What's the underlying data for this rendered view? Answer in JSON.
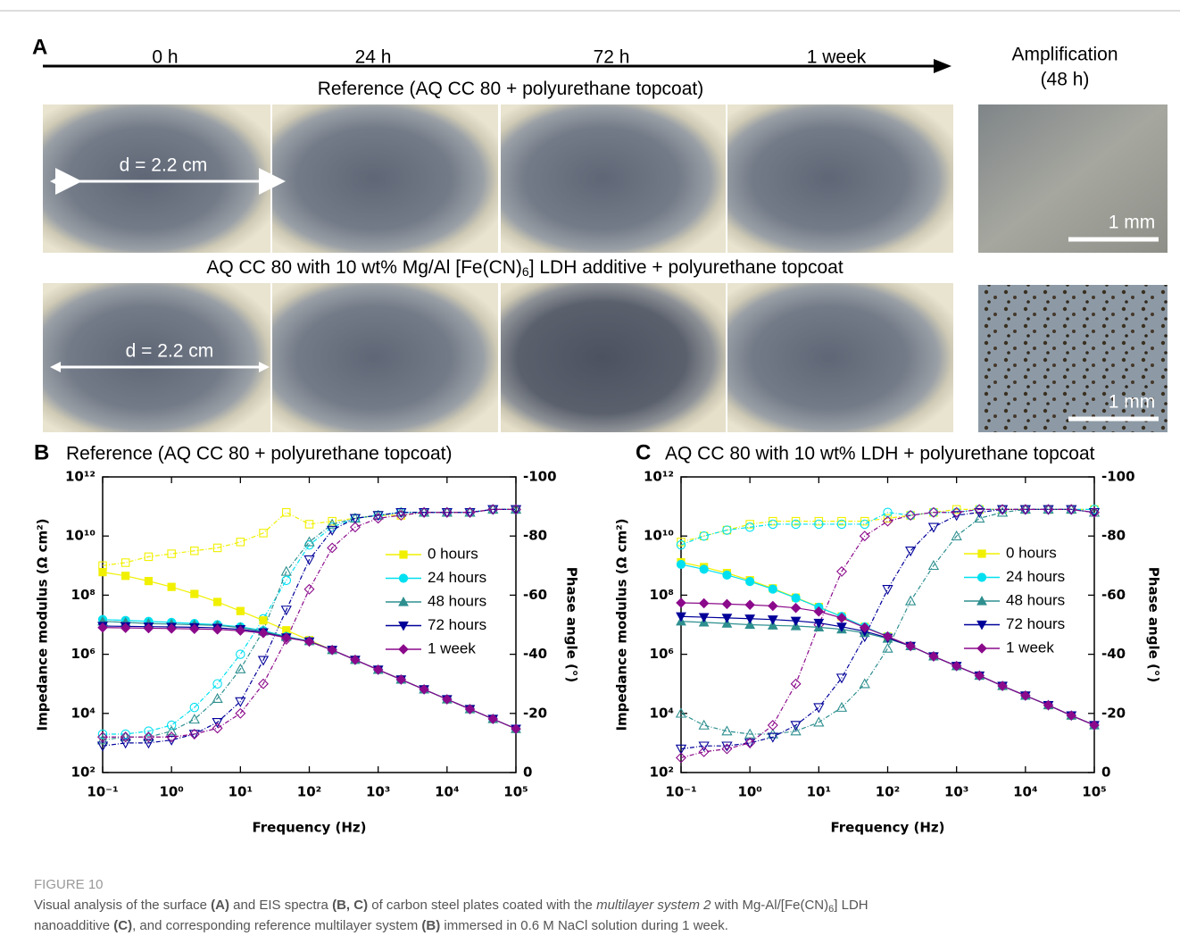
{
  "panel_a": {
    "letter": "A",
    "time_labels": [
      "0 h",
      "24 h",
      "72 h",
      "1 week"
    ],
    "amplification": [
      "Amplification",
      "(48 h)"
    ],
    "row_titles": [
      [
        "Reference (AQ CC 80 + polyurethane topcoat)"
      ],
      [
        "AQ CC 80 with 10 wt% Mg/Al [Fe(CN)",
        "6",
        "] LDH additive  + polyurethane topcoat"
      ]
    ],
    "diameter_labels": [
      "d = 2.2 cm",
      "d = 2.2 cm"
    ],
    "scale_labels": [
      "1 mm",
      "1 mm"
    ]
  },
  "chart_data": [
    {
      "type": "line",
      "panel": "B",
      "title": "Reference (AQ CC 80 + polyurethane topcoat)",
      "x_label": "Frequency (Hz)",
      "y_label": "Impedance modulus (Ω cm²)",
      "y2_label": "Phase angle (°)",
      "x_scale": "log",
      "y_scale": "log",
      "legend": "right",
      "x": [
        0.1,
        0.215,
        0.464,
        1,
        2.15,
        4.64,
        10,
        21.5,
        46.4,
        100,
        215,
        464,
        1000,
        2150,
        4640,
        10000,
        21500,
        46400,
        100000
      ],
      "xlim": [
        0.1,
        100000
      ],
      "xticks": [
        {
          "value": 0.1,
          "label": "10⁻¹"
        },
        {
          "value": 1,
          "label": "10⁰"
        },
        {
          "value": 10,
          "label": "10¹"
        },
        {
          "value": 100,
          "label": "10²"
        },
        {
          "value": 1000,
          "label": "10³"
        },
        {
          "value": 10000,
          "label": "10⁴"
        },
        {
          "value": 100000,
          "label": "10⁵"
        }
      ],
      "ylim": [
        100,
        1000000000000.0
      ],
      "yticks": [
        {
          "value": 100,
          "label": "10²"
        },
        {
          "value": 10000,
          "label": "10⁴"
        },
        {
          "value": 1000000.0,
          "label": "10⁶"
        },
        {
          "value": 100000000.0,
          "label": "10⁸"
        },
        {
          "value": 10000000000.0,
          "label": "10¹⁰"
        },
        {
          "value": 1000000000000.0,
          "label": "10¹²"
        }
      ],
      "y2lim": [
        0,
        -100
      ],
      "y2ticks": [
        -100,
        -80,
        -60,
        -40,
        -20,
        0
      ],
      "series": [
        {
          "name": "0 hours",
          "color": "#f0f000",
          "marker": "square",
          "values": [
            600000000.0,
            450000000.0,
            300000000.0,
            190000000.0,
            110000000.0,
            59000000.0,
            29000000.0,
            14000000.0,
            6500000.0,
            3000000.0,
            1400000.0,
            650000.0,
            300000.0,
            140000.0,
            65000.0,
            30000.0,
            14000.0,
            6500.0,
            3000.0
          ]
        },
        {
          "name": "24 hours",
          "color": "#00e0f0",
          "marker": "circle",
          "values": [
            15000000.0,
            14000000.0,
            13000000.0,
            12000000.0,
            11000000.0,
            10000000.0,
            8500000.0,
            6300000.0,
            4000000.0,
            2800000.0,
            1400000.0,
            650000.0,
            300000.0,
            140000.0,
            65000.0,
            30000.0,
            14000.0,
            6500.0,
            3000.0
          ]
        },
        {
          "name": "48 hours",
          "color": "#2f8f8f",
          "marker": "triangle-up",
          "values": [
            13000000.0,
            12000000.0,
            11000000.0,
            10500000.0,
            10000000.0,
            9500000.0,
            8000000.0,
            6000000.0,
            3900000.0,
            2800000.0,
            1400000.0,
            650000.0,
            300000.0,
            140000.0,
            65000.0,
            30000.0,
            14000.0,
            6500.0,
            3000.0
          ]
        },
        {
          "name": "72 hours",
          "color": "#000099",
          "marker": "triangle-down",
          "values": [
            9000000.0,
            8800000.0,
            8600000.0,
            8400000.0,
            8200000.0,
            7800000.0,
            7000000.0,
            5500000.0,
            3700000.0,
            2700000.0,
            1400000.0,
            650000.0,
            300000.0,
            140000.0,
            65000.0,
            30000.0,
            14000.0,
            6500.0,
            3000.0
          ]
        },
        {
          "name": "1 week",
          "color": "#8b0a8b",
          "marker": "diamond",
          "values": [
            8000000.0,
            7800000.0,
            7600000.0,
            7400000.0,
            7200000.0,
            6900000.0,
            6300000.0,
            5200000.0,
            3600000.0,
            2700000.0,
            1400000.0,
            650000.0,
            300000.0,
            140000.0,
            65000.0,
            30000.0,
            14000.0,
            6500.0,
            3000.0
          ]
        },
        {
          "color": "#f0f000",
          "marker": "square",
          "open": true,
          "dashed": true,
          "axis": "y2",
          "values": [
            -70,
            -71,
            -73,
            -74,
            -75,
            -76,
            -78,
            -81,
            -88,
            -84,
            -85,
            -86,
            -87,
            -87,
            -88,
            -88,
            -88,
            -89,
            -89
          ]
        },
        {
          "color": "#00e0f0",
          "marker": "circle",
          "open": true,
          "dashed": true,
          "axis": "y2",
          "values": [
            -13,
            -13,
            -14,
            -16,
            -22,
            -30,
            -40,
            -52,
            -65,
            -77,
            -83,
            -86,
            -87,
            -88,
            -88,
            -88,
            -88,
            -89,
            -89
          ]
        },
        {
          "color": "#2f8f8f",
          "marker": "triangle-up",
          "open": true,
          "dashed": true,
          "axis": "y2",
          "values": [
            -11,
            -12,
            -12,
            -14,
            -18,
            -25,
            -35,
            -48,
            -68,
            -78,
            -84,
            -86,
            -87,
            -88,
            -88,
            -88,
            -88,
            -89,
            -89
          ]
        },
        {
          "color": "#000099",
          "marker": "triangle-down",
          "open": true,
          "dashed": true,
          "axis": "y2",
          "values": [
            -9,
            -10,
            -10,
            -11,
            -13,
            -17,
            -24,
            -38,
            -55,
            -72,
            -82,
            -86,
            -87,
            -88,
            -88,
            -88,
            -88,
            -89,
            -89
          ]
        },
        {
          "color": "#8b0a8b",
          "marker": "diamond",
          "open": true,
          "dashed": true,
          "axis": "y2",
          "values": [
            -12,
            -12,
            -12,
            -12,
            -13,
            -15,
            -20,
            -30,
            -45,
            -62,
            -76,
            -83,
            -86,
            -87,
            -88,
            -88,
            -88,
            -89,
            -89
          ]
        }
      ]
    },
    {
      "type": "line",
      "panel": "C",
      "title": "AQ CC 80 with 10 wt% LDH + polyurethane topcoat",
      "x_label": "Frequency (Hz)",
      "y_label": "Impedance modulus (Ω cm²)",
      "y2_label": "Phase angle (°)",
      "x_scale": "log",
      "y_scale": "log",
      "legend": "right",
      "x": [
        0.1,
        0.215,
        0.464,
        1,
        2.15,
        4.64,
        10,
        21.5,
        46.4,
        100,
        215,
        464,
        1000,
        2150,
        4640,
        10000,
        21500,
        46400,
        100000
      ],
      "xlim": [
        0.1,
        100000
      ],
      "xticks": [
        {
          "value": 0.1,
          "label": "10⁻¹"
        },
        {
          "value": 1,
          "label": "10⁰"
        },
        {
          "value": 10,
          "label": "10¹"
        },
        {
          "value": 100,
          "label": "10²"
        },
        {
          "value": 1000,
          "label": "10³"
        },
        {
          "value": 10000,
          "label": "10⁴"
        },
        {
          "value": 100000,
          "label": "10⁵"
        }
      ],
      "ylim": [
        100,
        1000000000000.0
      ],
      "yticks": [
        {
          "value": 100,
          "label": "10²"
        },
        {
          "value": 10000,
          "label": "10⁴"
        },
        {
          "value": 1000000.0,
          "label": "10⁶"
        },
        {
          "value": 100000000.0,
          "label": "10⁸"
        },
        {
          "value": 10000000000.0,
          "label": "10¹⁰"
        },
        {
          "value": 1000000000000.0,
          "label": "10¹²"
        }
      ],
      "y2lim": [
        0,
        -100
      ],
      "y2ticks": [
        -100,
        -80,
        -60,
        -40,
        -20,
        0
      ],
      "series": [
        {
          "name": "0 hours",
          "color": "#f0f000",
          "marker": "square",
          "values": [
            1300000000.0,
            890000000.0,
            560000000.0,
            320000000.0,
            170000000.0,
            83000000.0,
            40000000.0,
            19000000.0,
            8500000.0,
            4000000.0,
            1900000.0,
            850000.0,
            400000.0,
            190000.0,
            85000.0,
            40000.0,
            19000.0,
            8500.0,
            4000.0
          ]
        },
        {
          "name": "24 hours",
          "color": "#00e0f0",
          "marker": "circle",
          "values": [
            1100000000.0,
            750000000.0,
            480000000.0,
            290000000.0,
            160000000.0,
            80000000.0,
            39000000.0,
            19000000.0,
            8500000.0,
            4000000.0,
            1900000.0,
            850000.0,
            400000.0,
            190000.0,
            85000.0,
            40000.0,
            19000.0,
            8500.0,
            4000.0
          ]
        },
        {
          "name": "48 hours",
          "color": "#2f8f8f",
          "marker": "triangle-up",
          "values": [
            13000000.0,
            12000000.0,
            11000000.0,
            10000000.0,
            9500000.0,
            9000000.0,
            8200000.0,
            7000000.0,
            5300000.0,
            3400000.0,
            1900000.0,
            850000.0,
            400000.0,
            190000.0,
            85000.0,
            40000.0,
            19000.0,
            8500.0,
            4000.0
          ]
        },
        {
          "name": "72 hours",
          "color": "#000099",
          "marker": "triangle-down",
          "values": [
            19000000.0,
            18000000.0,
            17000000.0,
            16000000.0,
            15000000.0,
            13500000.0,
            11500000.0,
            8500000.0,
            6000000.0,
            3600000.0,
            1900000.0,
            850000.0,
            400000.0,
            190000.0,
            85000.0,
            40000.0,
            19000.0,
            8500.0,
            4000.0
          ]
        },
        {
          "name": "1 week",
          "color": "#8b0a8b",
          "marker": "diamond",
          "values": [
            55000000.0,
            53000000.0,
            50000000.0,
            47000000.0,
            43000000.0,
            37000000.0,
            28000000.0,
            17000000.0,
            8000000.0,
            4000000.0,
            1900000.0,
            850000.0,
            400000.0,
            190000.0,
            85000.0,
            40000.0,
            19000.0,
            8500.0,
            4000.0
          ]
        },
        {
          "color": "#f0f000",
          "marker": "square",
          "open": true,
          "dashed": true,
          "axis": "y2",
          "values": [
            -78,
            -80,
            -82,
            -84,
            -85,
            -85,
            -85,
            -85,
            -85,
            -86,
            -87,
            -88,
            -89,
            -89,
            -89,
            -89,
            -89,
            -89,
            -89
          ]
        },
        {
          "color": "#00e0f0",
          "marker": "circle",
          "open": true,
          "dashed": true,
          "axis": "y2",
          "values": [
            -77,
            -80,
            -82,
            -83,
            -84,
            -84,
            -84,
            -84,
            -84,
            -88,
            -87,
            -88,
            -88,
            -89,
            -89,
            -89,
            -89,
            -89,
            -89
          ]
        },
        {
          "color": "#2f8f8f",
          "marker": "triangle-up",
          "open": true,
          "dashed": true,
          "axis": "y2",
          "values": [
            -20,
            -16,
            -14,
            -13,
            -13,
            -14,
            -17,
            -22,
            -30,
            -42,
            -58,
            -70,
            -80,
            -86,
            -88,
            -89,
            -89,
            -89,
            -88
          ]
        },
        {
          "color": "#000099",
          "marker": "triangle-down",
          "open": true,
          "dashed": true,
          "axis": "y2",
          "values": [
            -8,
            -9,
            -9,
            -10,
            -12,
            -16,
            -22,
            -32,
            -46,
            -62,
            -75,
            -83,
            -87,
            -88,
            -89,
            -89,
            -89,
            -89,
            -88
          ]
        },
        {
          "color": "#8b0a8b",
          "marker": "diamond",
          "open": true,
          "dashed": true,
          "axis": "y2",
          "values": [
            -5,
            -7,
            -8,
            -10,
            -16,
            -30,
            -50,
            -68,
            -80,
            -85,
            -87,
            -88,
            -88,
            -89,
            -89,
            -89,
            -89,
            -89,
            -88
          ]
        }
      ]
    }
  ],
  "caption": {
    "label": "FIGURE 10",
    "lines": [
      [
        "Visual analysis of the surface ",
        "(A)",
        " and EIS spectra ",
        "(B, C)",
        " of carbon steel plates coated with the ",
        "multilayer system 2",
        " with Mg-Al/[Fe(CN)",
        "6",
        "] LDH"
      ],
      [
        "nanoadditive ",
        "(C)",
        ", and corresponding reference multilayer system ",
        "(B)",
        " immersed in 0.6 M NaCl solution during 1 week."
      ]
    ]
  }
}
